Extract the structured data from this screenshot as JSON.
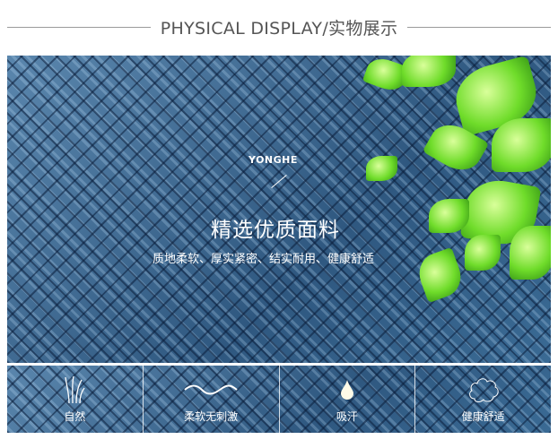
{
  "header": {
    "title": "PHYSICAL DISPLAY/实物展示"
  },
  "banner": {
    "brand": "YONGHE",
    "title": "精选优质面料",
    "subtitle": "质地柔软、厚实紧密、结实耐用、健康舒适"
  },
  "features": [
    {
      "label": "自然",
      "icon": "grass-icon"
    },
    {
      "label": "柔软无刺激",
      "icon": "wave-icon"
    },
    {
      "label": "吸汗",
      "icon": "water-drop-icon"
    },
    {
      "label": "健康舒适",
      "icon": "cloud-icon"
    }
  ],
  "colors": {
    "fabric": "#3f6b92",
    "leaf": "#6fdc2a"
  }
}
